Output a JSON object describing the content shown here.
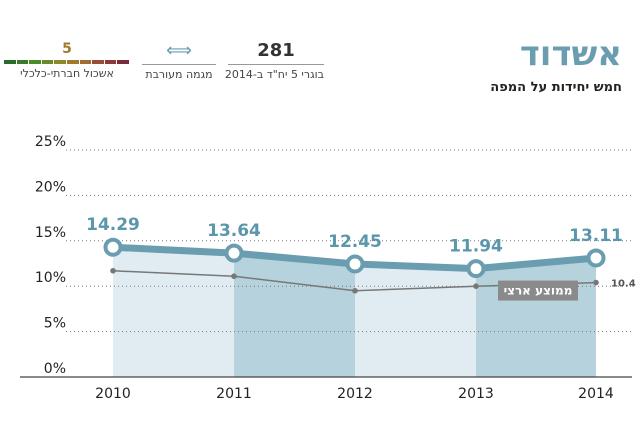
{
  "header": {
    "title": "אשדוד",
    "subtitle": "חמש יחידות על המפה"
  },
  "stats": {
    "graduates": {
      "value": "281",
      "label": "בוגרי 5 יח\"ד ב-2014"
    },
    "mixed": {
      "label": "מגמה מעורבת",
      "icon": "double-arrow-icon"
    },
    "socio": {
      "value": "5",
      "label": "אשכול חברתי-כלכלי",
      "bar_colors": [
        "#7a2a3a",
        "#8a3a3a",
        "#9a4a3a",
        "#a06a34",
        "#a07a2a",
        "#8a8a2a",
        "#6a8a2a",
        "#4a8a2a",
        "#3a7a2a",
        "#2a6a2a"
      ]
    }
  },
  "colors": {
    "city_line": "#6a9db0",
    "city_fill_light": "#e0ecf1",
    "city_fill_dark": "#b6d2dc",
    "national_line": "#777777"
  },
  "chart_data": {
    "type": "line",
    "x": [
      "2010",
      "2011",
      "2012",
      "2013",
      "2014"
    ],
    "y_ticks": [
      "0%",
      "5%",
      "10%",
      "15%",
      "20%",
      "25%"
    ],
    "ylim": [
      0,
      25
    ],
    "grid": true,
    "series": [
      {
        "key": "city",
        "values": [
          14.29,
          13.64,
          12.45,
          11.94,
          13.11
        ],
        "labels": [
          "14.29",
          "13.64",
          "12.45",
          "11.94",
          "13.11"
        ]
      },
      {
        "key": "national",
        "name": "ממוצע ארצי",
        "values": [
          11.7,
          11.1,
          9.5,
          10.0,
          10.4
        ],
        "end_label": "10.4"
      }
    ]
  }
}
